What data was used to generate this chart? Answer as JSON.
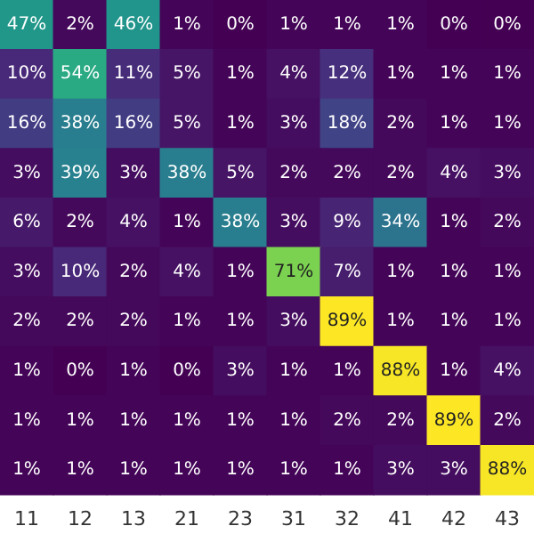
{
  "chart_data": {
    "type": "heatmap",
    "categories": [
      "11",
      "12",
      "13",
      "21",
      "23",
      "31",
      "32",
      "41",
      "42",
      "43"
    ],
    "y_categories": [
      null,
      null,
      null,
      null,
      null,
      null,
      null,
      null,
      null,
      null
    ],
    "cells": [
      [
        47,
        2,
        46,
        1,
        0,
        1,
        1,
        1,
        0,
        0
      ],
      [
        10,
        54,
        11,
        5,
        1,
        4,
        12,
        1,
        1,
        1
      ],
      [
        16,
        38,
        16,
        5,
        1,
        3,
        18,
        2,
        1,
        1
      ],
      [
        3,
        39,
        3,
        38,
        5,
        2,
        2,
        2,
        4,
        3
      ],
      [
        6,
        2,
        4,
        1,
        38,
        3,
        9,
        34,
        1,
        2
      ],
      [
        3,
        10,
        2,
        4,
        1,
        71,
        7,
        1,
        1,
        1
      ],
      [
        2,
        2,
        2,
        1,
        1,
        3,
        89,
        1,
        1,
        1
      ],
      [
        1,
        0,
        1,
        0,
        3,
        1,
        1,
        88,
        1,
        4
      ],
      [
        1,
        1,
        1,
        1,
        1,
        1,
        2,
        2,
        89,
        2
      ],
      [
        1,
        1,
        1,
        1,
        1,
        1,
        1,
        3,
        3,
        88
      ]
    ],
    "cell_labels": [
      [
        "47%",
        "2%",
        "46%",
        "1%",
        "0%",
        "1%",
        "1%",
        "1%",
        "0%",
        "0%"
      ],
      [
        "10%",
        "54%",
        "11%",
        "5%",
        "1%",
        "4%",
        "12%",
        "1%",
        "1%",
        "1%"
      ],
      [
        "16%",
        "38%",
        "16%",
        "5%",
        "1%",
        "3%",
        "18%",
        "2%",
        "1%",
        "1%"
      ],
      [
        "3%",
        "39%",
        "3%",
        "38%",
        "5%",
        "2%",
        "2%",
        "2%",
        "4%",
        "3%"
      ],
      [
        "6%",
        "2%",
        "4%",
        "1%",
        "38%",
        "3%",
        "9%",
        "34%",
        "1%",
        "2%"
      ],
      [
        "3%",
        "10%",
        "2%",
        "4%",
        "1%",
        "71%",
        "7%",
        "1%",
        "1%",
        "1%"
      ],
      [
        "2%",
        "2%",
        "2%",
        "1%",
        "1%",
        "3%",
        "89%",
        "1%",
        "1%",
        "1%"
      ],
      [
        "1%",
        "0%",
        "1%",
        "0%",
        "3%",
        "1%",
        "1%",
        "88%",
        "1%",
        "4%"
      ],
      [
        "1%",
        "1%",
        "1%",
        "1%",
        "1%",
        "1%",
        "2%",
        "2%",
        "89%",
        "2%"
      ],
      [
        "1%",
        "1%",
        "1%",
        "1%",
        "1%",
        "1%",
        "1%",
        "3%",
        "3%",
        "88%"
      ]
    ],
    "colors": [
      "#440154",
      "#482878",
      "#3e4989",
      "#31688e",
      "#26828e",
      "#1f9e89",
      "#35b779",
      "#6ece58",
      "#b5de2b",
      "#fde725"
    ]
  }
}
